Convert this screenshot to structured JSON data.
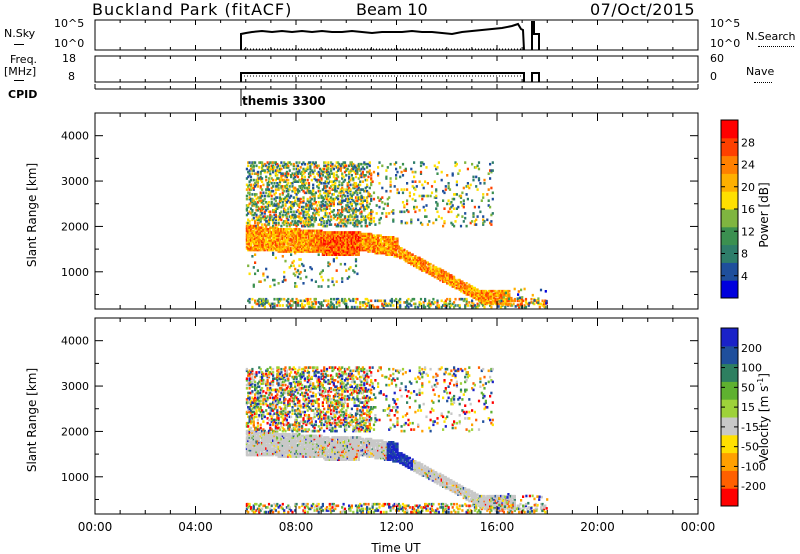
{
  "header": {
    "station": "Buckland Park (fitACF)",
    "beam": "Beam 10",
    "date": "07/Oct/2015"
  },
  "top_panels": {
    "nsky_label": "N.Sky",
    "nsky_ticks": [
      "10^5",
      "10^0"
    ],
    "nsky_right_ticks": [
      "10^5",
      "10^0"
    ],
    "nsearch_label": "N.Search",
    "freq_label_1": "Freq.",
    "freq_label_2": "[MHz]",
    "freq_ticks": [
      "18",
      "8"
    ],
    "nave_ticks": [
      "60",
      "0"
    ],
    "nave_label": "Nave",
    "cpid_label": "CPID",
    "cpid_value": "themis 3300"
  },
  "colors": {
    "power_scale": [
      "#0000dd",
      "#1f4f9c",
      "#2e7d6a",
      "#3b9050",
      "#7fb540",
      "#ffe000",
      "#ffb000",
      "#ff8000",
      "#ff4000",
      "#ff0000"
    ],
    "velocity_scale": [
      "#1a22c8",
      "#1f4f9c",
      "#2e7f60",
      "#5fb130",
      "#9ed23a",
      "#c8c8c8",
      "#ffe000",
      "#ffa000",
      "#ff6000",
      "#ff0000"
    ]
  },
  "chart_data": [
    {
      "type": "heatmap",
      "title": "",
      "xlabel": "Time UT",
      "ylabel": "Slant Range [km]",
      "xlim": [
        "00:00",
        "24:00"
      ],
      "x_tick_labels": [
        "00:00",
        "04:00",
        "08:00",
        "12:00",
        "16:00",
        "20:00",
        "00:00"
      ],
      "ylim": [
        180,
        4500
      ],
      "y_tick_labels": [
        "1000",
        "2000",
        "3000",
        "4000"
      ],
      "colorbar": {
        "label": "Power [dB]",
        "ticks": [
          "4",
          "8",
          "12",
          "16",
          "20",
          "24",
          "28"
        ],
        "range": [
          0,
          30
        ]
      },
      "observation_window_UT": [
        6.0,
        17.9
      ],
      "features": [
        {
          "description": "strong backscatter band",
          "time_UT": [
            6.0,
            9.0
          ],
          "range_km": [
            1500,
            2000
          ],
          "power_dB": 24
        },
        {
          "description": "strong backscatter band",
          "time_UT": [
            9.0,
            10.5
          ],
          "range_km": [
            1400,
            1800
          ],
          "power_dB": 28
        },
        {
          "description": "descending band",
          "time_UT": [
            12.0,
            15.5
          ],
          "range_km": [
            500,
            1500
          ],
          "power_dB": 20
        }
      ]
    },
    {
      "type": "heatmap",
      "title": "",
      "xlabel": "Time UT",
      "ylabel": "Slant Range [km]",
      "xlim": [
        "00:00",
        "24:00"
      ],
      "x_tick_labels": [
        "00:00",
        "04:00",
        "08:00",
        "12:00",
        "16:00",
        "20:00",
        "00:00"
      ],
      "ylim": [
        180,
        4500
      ],
      "y_tick_labels": [
        "1000",
        "2000",
        "3000",
        "4000"
      ],
      "colorbar": {
        "label": "Velocity [m s^-1]",
        "ticks": [
          "200",
          "100",
          "50",
          "15",
          "-15",
          "-50",
          "-100",
          "-200"
        ],
        "range": [
          -250,
          250
        ]
      },
      "observation_window_UT": [
        6.0,
        17.9
      ],
      "features": [
        {
          "description": "low velocity (ground scatter) band",
          "time_UT": [
            6.0,
            11.0
          ],
          "range_km": [
            1400,
            2000
          ],
          "velocity": 0
        },
        {
          "description": "positive velocity patch",
          "time_UT": [
            11.5,
            12.5
          ],
          "range_km": [
            1100,
            1500
          ],
          "velocity": 200
        },
        {
          "description": "low velocity descending band",
          "time_UT": [
            12.5,
            16.5
          ],
          "range_km": [
            300,
            1200
          ],
          "velocity": 0
        }
      ]
    }
  ],
  "axis_labels": {
    "xlabel": "Time UT",
    "ylabel": "Slant Range [km]",
    "power_label": "Power [dB]",
    "velocity_label": "Velocity [m s",
    "velocity_sup": "-1",
    "velocity_close": "]"
  }
}
